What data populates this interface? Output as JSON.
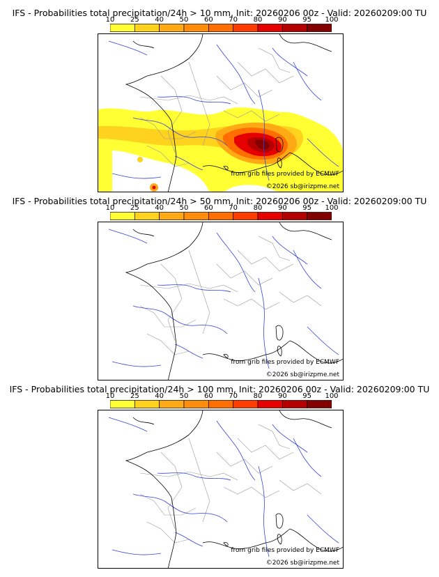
{
  "colorbar": {
    "ticks": [
      "10",
      "25",
      "40",
      "50",
      "60",
      "70",
      "80",
      "90",
      "95",
      "100"
    ],
    "colors": [
      "#ffff33",
      "#ffd21e",
      "#ffaa14",
      "#ff8c0a",
      "#ff6e00",
      "#ff3c00",
      "#e60000",
      "#b40000",
      "#820000"
    ]
  },
  "panels": [
    {
      "title": "IFS - Probabilities total precipitation/24h > 10 mm, Init: 20260206 00z - Valid: 20260209:00 TU",
      "credit_source": "from grib files provided by ECMWF",
      "credit_site": "©2026 sb@irizpme.net"
    },
    {
      "title": "IFS - Probabilities total precipitation/24h > 50 mm, Init: 20260206 00z - Valid: 20260209:00 TU",
      "credit_source": "from grib files provided by ECMWF",
      "credit_site": "©2026 sb@irizpme.net"
    },
    {
      "title": "IFS - Probabilities total precipitation/24h > 100 mm, Init: 20260206 00z - Valid: 20260209:00 TU",
      "credit_source": "from grib files provided by ECMWF",
      "credit_site": "©2026 sb@irizpme.net"
    }
  ],
  "map_style": {
    "coast": "#000000",
    "rivers": "#3344dd",
    "borders": "#999999"
  }
}
